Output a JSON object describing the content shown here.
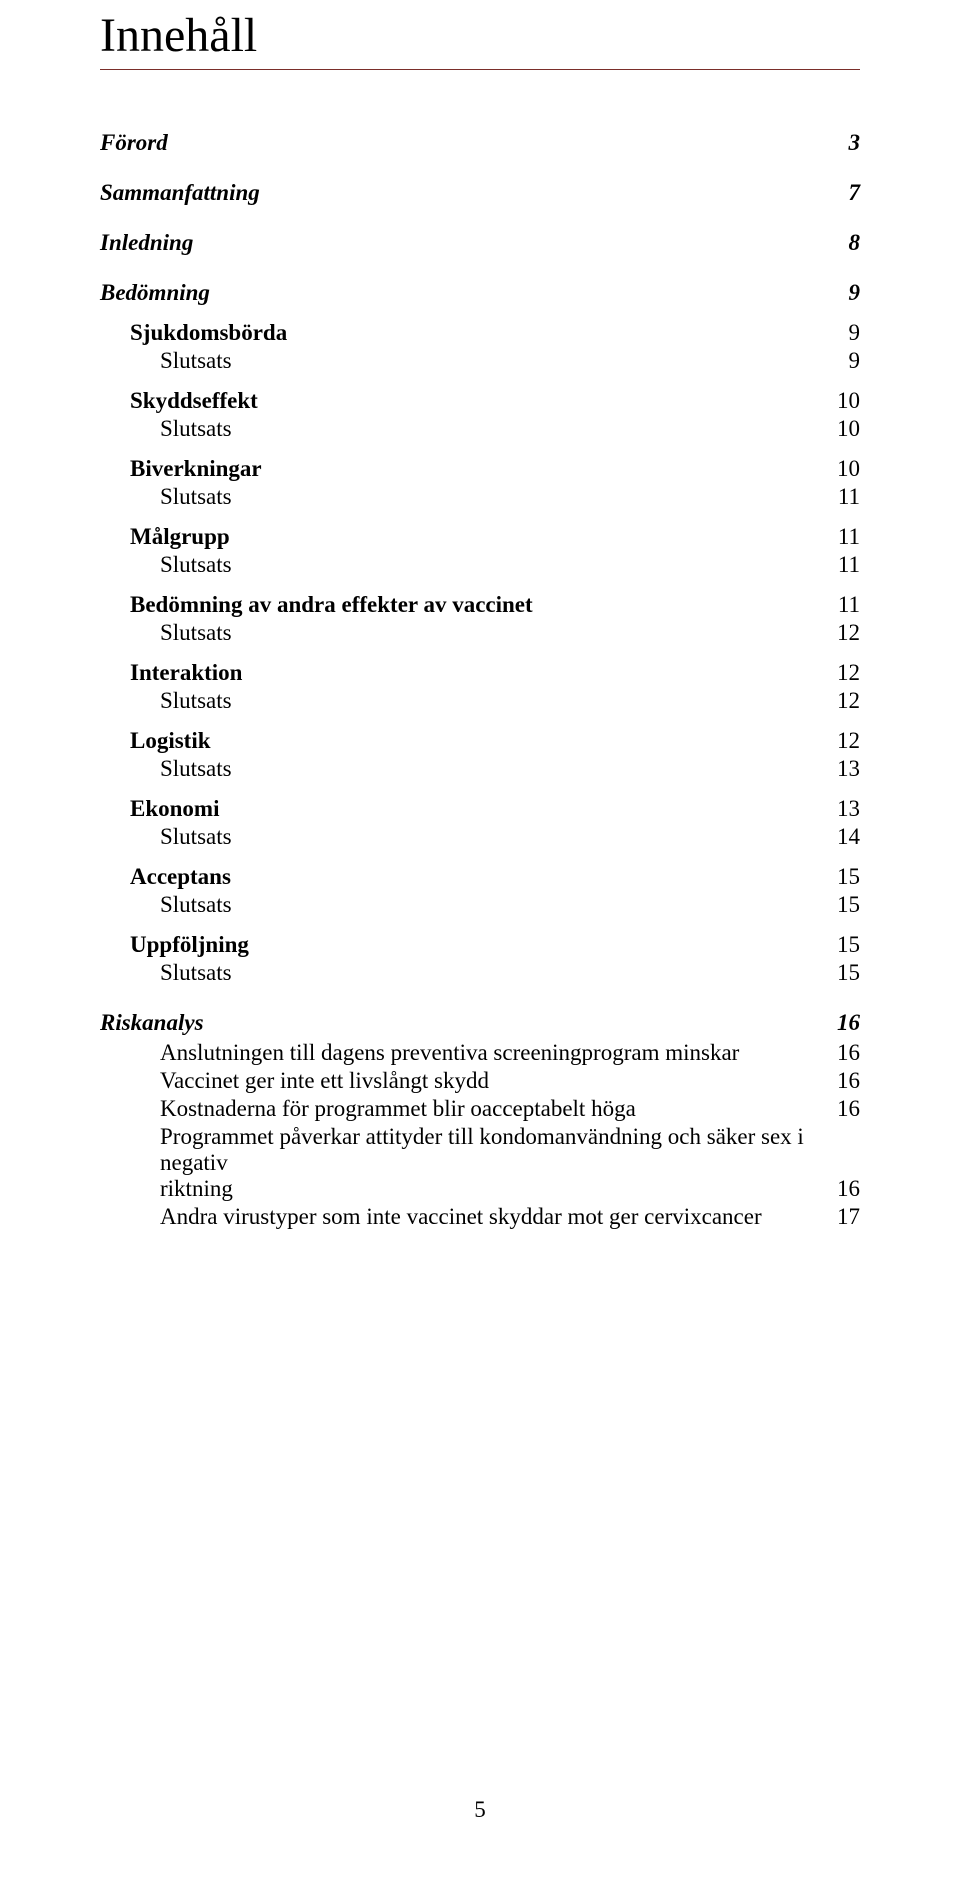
{
  "title": "Innehåll",
  "title_rule_color": "#7a2e2a",
  "footer_page_number": "5",
  "toc": {
    "forord": {
      "label": "Förord",
      "page": "3"
    },
    "sammanfattning": {
      "label": "Sammanfattning",
      "page": "7"
    },
    "inledning": {
      "label": "Inledning",
      "page": "8"
    },
    "bedomning": {
      "label": "Bedömning",
      "page": "9"
    },
    "sjukdomsborda": {
      "label": "Sjukdomsbörda",
      "page": "9"
    },
    "sjukdomsborda_slutsats": {
      "label": "Slutsats",
      "page": "9"
    },
    "skyddseffekt": {
      "label": "Skyddseffekt",
      "page": "10"
    },
    "skyddseffekt_slutsats": {
      "label": "Slutsats",
      "page": "10"
    },
    "biverkningar": {
      "label": "Biverkningar",
      "page": "10"
    },
    "biverkningar_slutsats": {
      "label": "Slutsats",
      "page": "11"
    },
    "malgrupp": {
      "label": "Målgrupp",
      "page": "11"
    },
    "malgrupp_slutsats": {
      "label": "Slutsats",
      "page": "11"
    },
    "bedomning_andra": {
      "label": "Bedömning av andra effekter av vaccinet",
      "page": "11"
    },
    "bedomning_andra_slutsats": {
      "label": "Slutsats",
      "page": "12"
    },
    "interaktion": {
      "label": "Interaktion",
      "page": "12"
    },
    "interaktion_slutsats": {
      "label": "Slutsats",
      "page": "12"
    },
    "logistik": {
      "label": "Logistik",
      "page": "12"
    },
    "logistik_slutsats": {
      "label": "Slutsats",
      "page": "13"
    },
    "ekonomi": {
      "label": "Ekonomi",
      "page": "13"
    },
    "ekonomi_slutsats": {
      "label": "Slutsats",
      "page": "14"
    },
    "acceptans": {
      "label": "Acceptans",
      "page": "15"
    },
    "acceptans_slutsats": {
      "label": "Slutsats",
      "page": "15"
    },
    "uppfoljning": {
      "label": "Uppföljning",
      "page": "15"
    },
    "uppfoljning_slutsats": {
      "label": "Slutsats",
      "page": "15"
    },
    "riskanalys": {
      "label": "Riskanalys",
      "page": "16"
    },
    "ra_anslutning": {
      "label": "Anslutningen till dagens preventiva screeningprogram minskar",
      "page": "16"
    },
    "ra_vaccinet": {
      "label": "Vaccinet ger inte ett livslångt skydd",
      "page": "16"
    },
    "ra_kostnader": {
      "label": "Kostnaderna för programmet blir oacceptabelt höga",
      "page": "16"
    },
    "ra_programmet_line1": "Programmet påverkar attityder till kondomanvändning och säker sex i negativ",
    "ra_programmet_line2": "riktning",
    "ra_programmet_page": "16",
    "ra_andra": {
      "label": "Andra virustyper som inte vaccinet skyddar mot ger cervixcancer",
      "page": "17"
    }
  }
}
